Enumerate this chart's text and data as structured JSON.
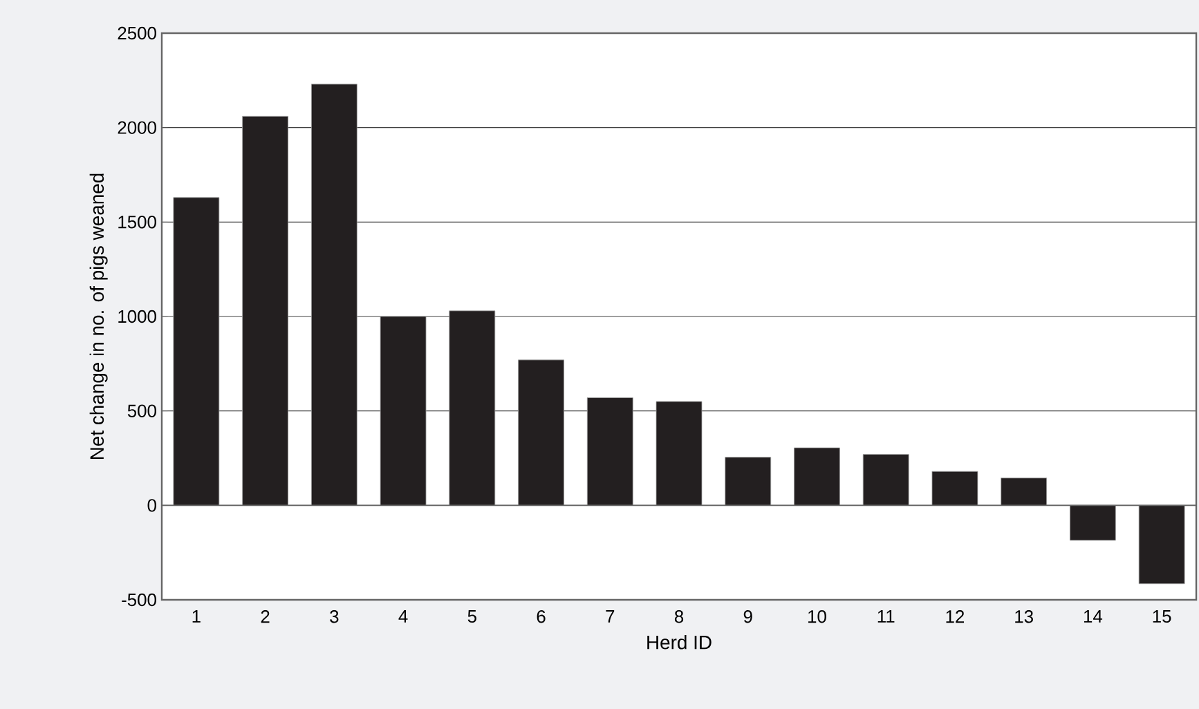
{
  "chart_data": {
    "type": "bar",
    "xlabel": "Herd ID",
    "ylabel": "Net change in no. of pigs weaned",
    "categories": [
      "1",
      "2",
      "3",
      "4",
      "5",
      "6",
      "7",
      "8",
      "9",
      "10",
      "11",
      "12",
      "13",
      "14",
      "15"
    ],
    "values": [
      1630,
      2060,
      2230,
      1000,
      1030,
      770,
      570,
      550,
      255,
      305,
      270,
      180,
      145,
      -185,
      -415
    ],
    "color": "#231f20",
    "ylim": [
      -500,
      2500
    ],
    "yticks": [
      -500,
      0,
      500,
      1000,
      1500,
      2000,
      2500
    ],
    "grid": "y"
  }
}
